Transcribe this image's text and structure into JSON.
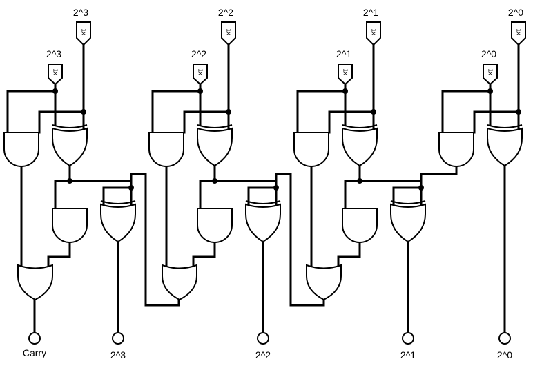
{
  "inputs": {
    "top": [
      "2^3",
      "2^2",
      "2^1",
      "2^0"
    ],
    "mid": [
      "2^3",
      "2^2",
      "2^1",
      "2^0"
    ],
    "pin_text": "1x"
  },
  "outputs": {
    "carry": "Carry",
    "bits": [
      "2^3",
      "2^2",
      "2^1",
      "2^0"
    ]
  },
  "colors": {
    "wire": "#000000",
    "background": "#ffffff"
  }
}
